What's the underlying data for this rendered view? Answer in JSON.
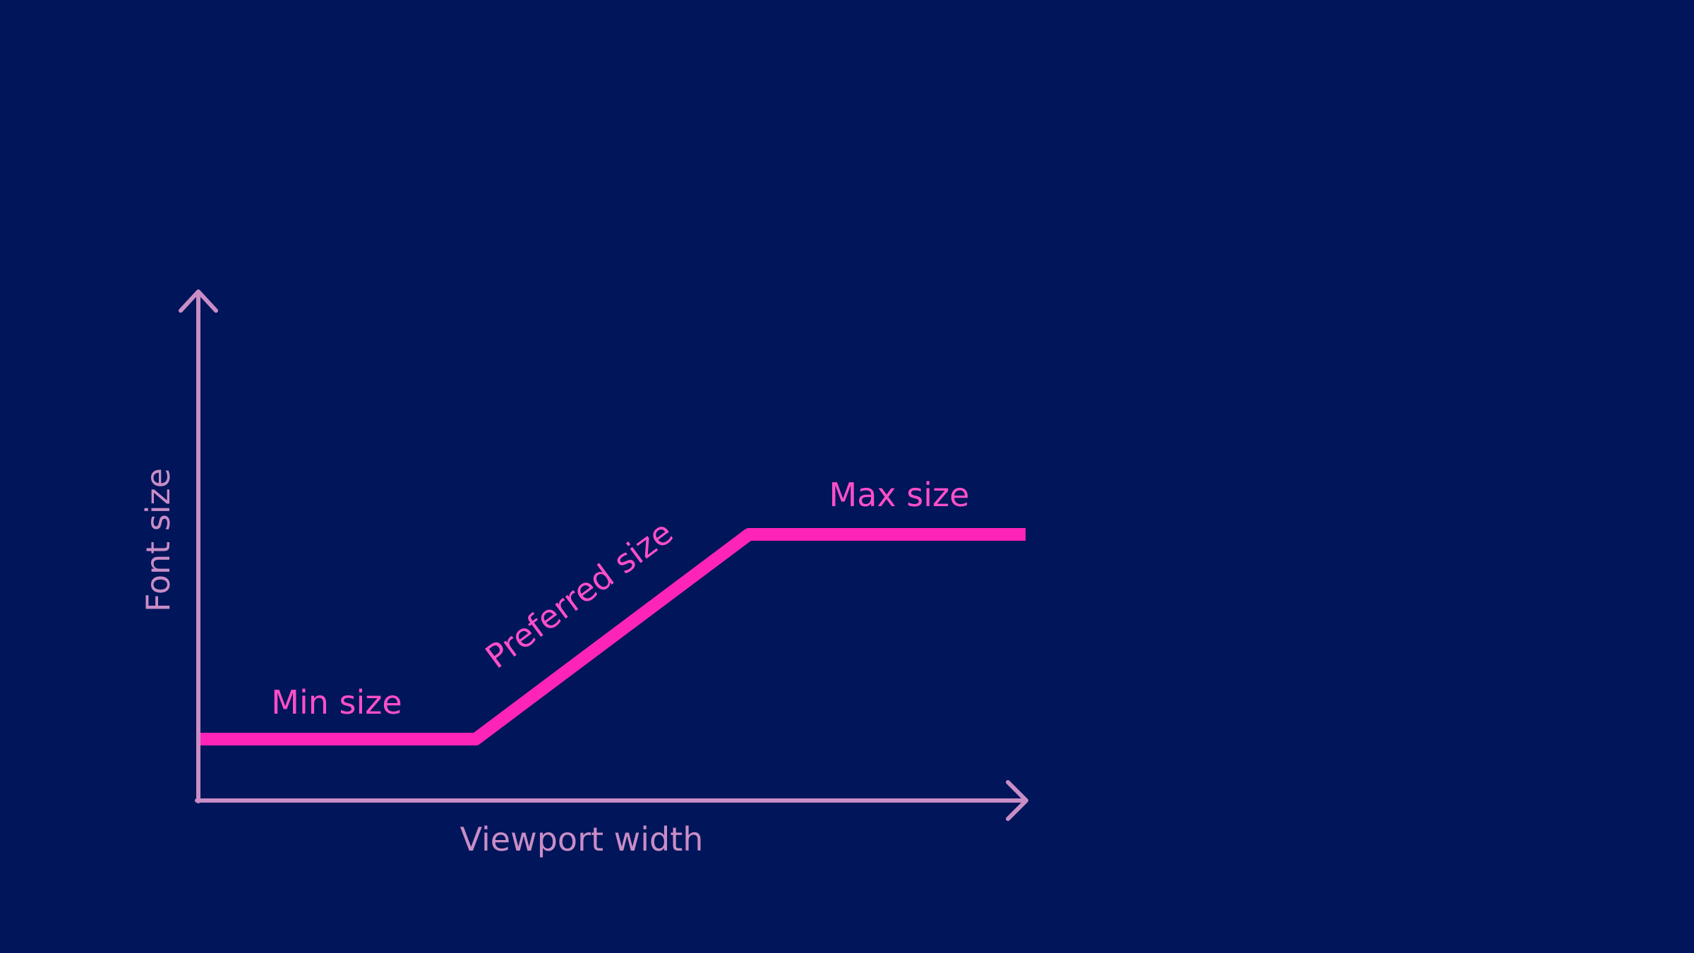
{
  "diagram": {
    "labels": {
      "y_axis": "Font size",
      "x_axis": "Viewport width",
      "min": "Min size",
      "preferred": "Preferred size",
      "max": "Max size"
    },
    "colors": {
      "background": "#00155a",
      "axis": "#c98dc6",
      "curve": "#ff24b8",
      "curve_label": "#ff4fc8"
    }
  }
}
